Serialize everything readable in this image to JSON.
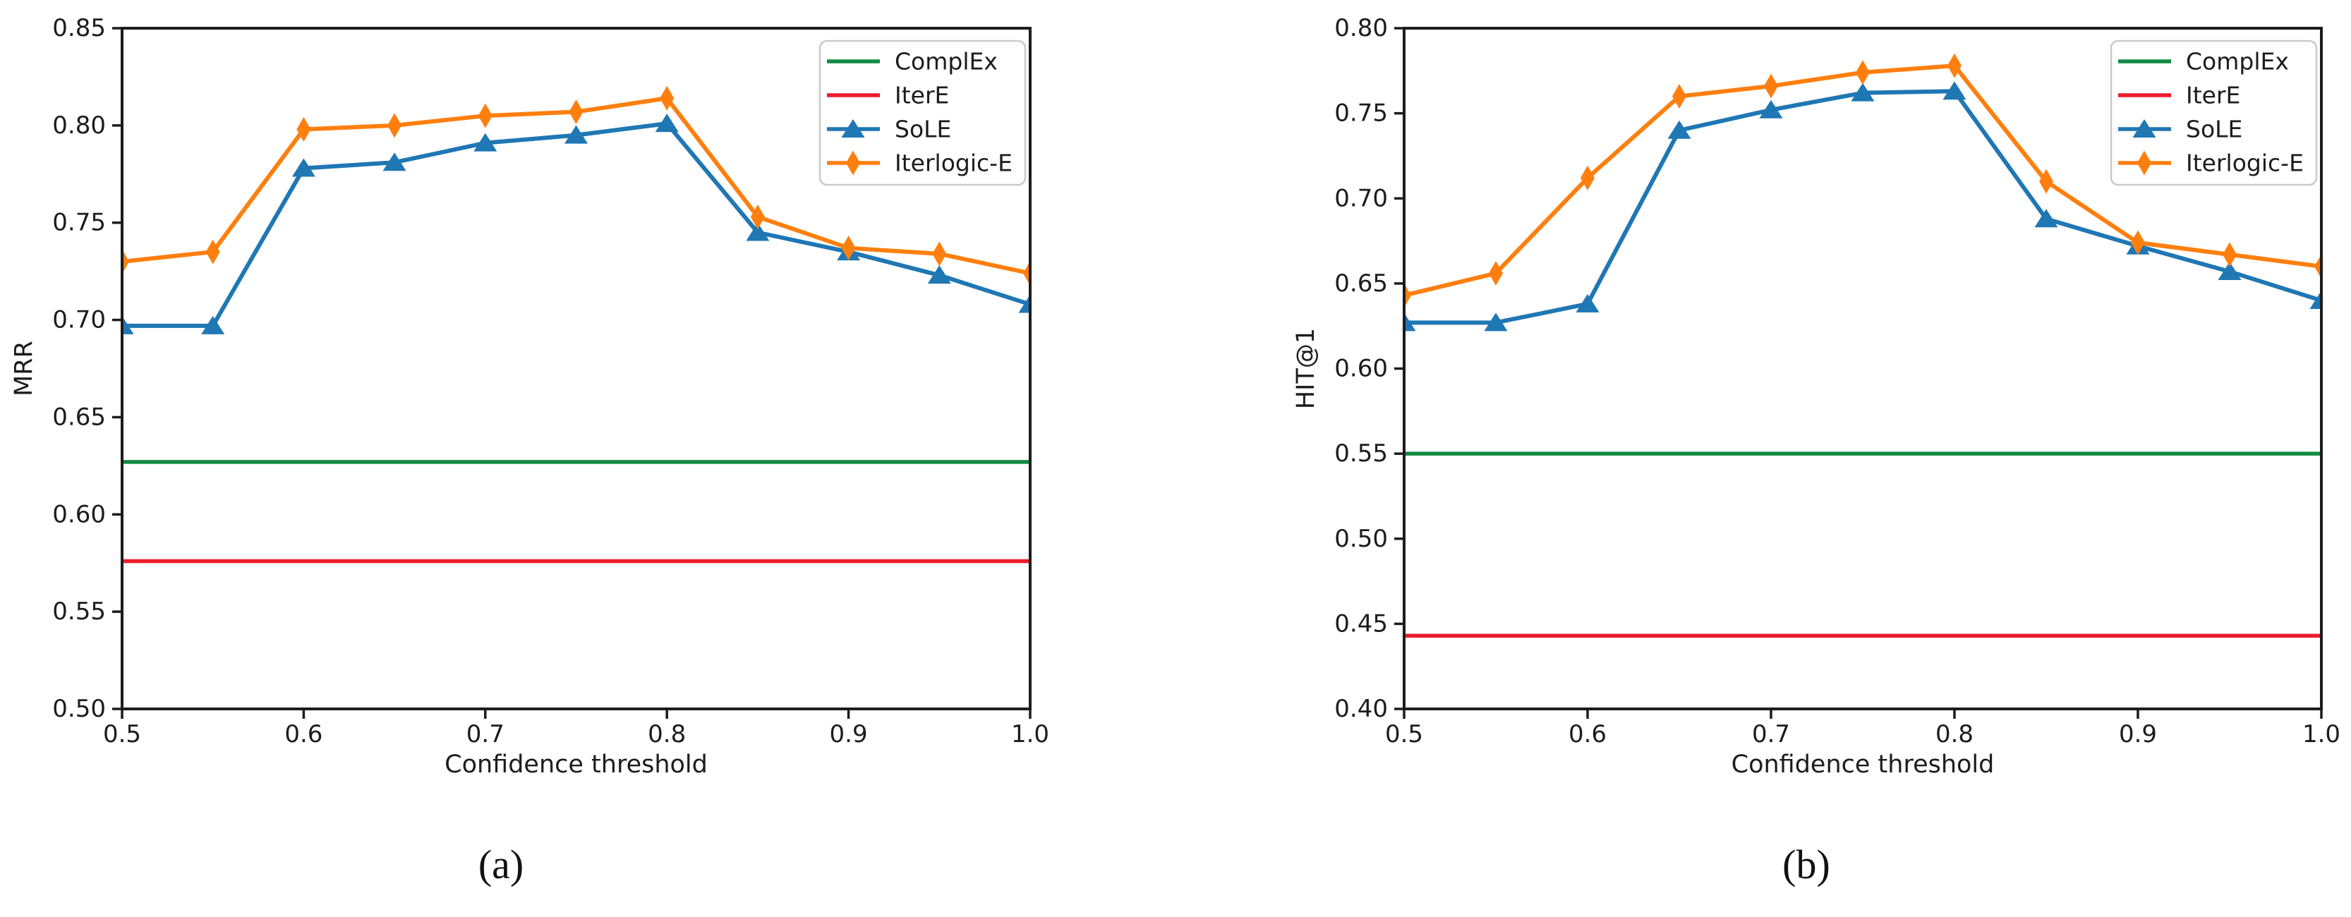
{
  "chart_data": [
    {
      "id": "a",
      "type": "line",
      "caption": "(a)",
      "xlabel": "Confidence threshold",
      "ylabel": "MRR",
      "xlim": [
        0.5,
        1.0
      ],
      "ylim": [
        0.5,
        0.85
      ],
      "xticks": [
        0.5,
        0.6,
        0.7,
        0.8,
        0.9,
        1.0
      ],
      "ytick_step": 0.05,
      "grid": false,
      "legend_position": "upper right",
      "legend": [
        "ComplEx",
        "IterE",
        "SoLE",
        "Iterlogic-E"
      ],
      "x": [
        0.5,
        0.55,
        0.6,
        0.65,
        0.7,
        0.75,
        0.8,
        0.85,
        0.9,
        0.95,
        1.0
      ],
      "series": [
        {
          "name": "ComplEx",
          "style": "hline",
          "color": "#128a42",
          "value": 0.627
        },
        {
          "name": "IterE",
          "style": "hline",
          "color": "#ec1c2c",
          "value": 0.576
        },
        {
          "name": "SoLE",
          "style": "line",
          "marker": "triangle",
          "color": "#1f77b4",
          "values": [
            0.697,
            0.697,
            0.778,
            0.781,
            0.791,
            0.795,
            0.801,
            0.745,
            0.735,
            0.723,
            0.708
          ]
        },
        {
          "name": "Iterlogic-E",
          "style": "line",
          "marker": "thin-diamond",
          "color": "#ff7f0e",
          "values": [
            0.73,
            0.735,
            0.798,
            0.8,
            0.805,
            0.807,
            0.814,
            0.753,
            0.737,
            0.734,
            0.724
          ]
        }
      ]
    },
    {
      "id": "b",
      "type": "line",
      "caption": "(b)",
      "xlabel": "Confidence threshold",
      "ylabel": "HIT@1",
      "xlim": [
        0.5,
        1.0
      ],
      "ylim": [
        0.4,
        0.8
      ],
      "xticks": [
        0.5,
        0.6,
        0.7,
        0.8,
        0.9,
        1.0
      ],
      "ytick_step": 0.05,
      "grid": false,
      "legend_position": "upper right",
      "legend": [
        "ComplEx",
        "IterE",
        "SoLE",
        "Iterlogic-E"
      ],
      "x": [
        0.5,
        0.55,
        0.6,
        0.65,
        0.7,
        0.75,
        0.8,
        0.85,
        0.9,
        0.95,
        1.0
      ],
      "series": [
        {
          "name": "ComplEx",
          "style": "hline",
          "color": "#128a42",
          "value": 0.55
        },
        {
          "name": "IterE",
          "style": "hline",
          "color": "#ec1c2c",
          "value": 0.443
        },
        {
          "name": "SoLE",
          "style": "line",
          "marker": "triangle",
          "color": "#1f77b4",
          "values": [
            0.627,
            0.627,
            0.638,
            0.74,
            0.752,
            0.762,
            0.763,
            0.688,
            0.672,
            0.657,
            0.64
          ]
        },
        {
          "name": "Iterlogic-E",
          "style": "line",
          "marker": "thin-diamond",
          "color": "#ff7f0e",
          "values": [
            0.643,
            0.656,
            0.712,
            0.76,
            0.766,
            0.774,
            0.778,
            0.71,
            0.674,
            0.667,
            0.66
          ]
        }
      ]
    }
  ],
  "style": {
    "text_color": "#1c1c1c",
    "spine_color": "#1c1c1c",
    "legend_border_color": "#c9c9c9",
    "background": "#ffffff"
  }
}
